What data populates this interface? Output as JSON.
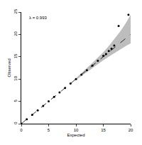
{
  "chart_data": {
    "type": "scatter",
    "x_label": "Expected",
    "y_label": "Observed",
    "annotation": "λ = 0.993",
    "xlim": [
      0,
      20
    ],
    "xticks": [
      0,
      5,
      10,
      15,
      20
    ],
    "ylim": [
      0,
      25
    ],
    "yticks": [
      0,
      5,
      10,
      15,
      20,
      25
    ],
    "grid": false,
    "color": "#000000",
    "marker": "circle",
    "x": [
      0,
      1,
      2,
      3,
      4,
      5,
      6,
      7,
      8,
      9,
      10,
      11,
      12,
      13,
      14,
      15,
      15.5,
      16,
      16.5,
      17,
      17.8,
      19.6
    ],
    "values": [
      0,
      1,
      2,
      3,
      4,
      5,
      6,
      7,
      8,
      9,
      10,
      11,
      12,
      13,
      14.1,
      15.2,
      15.6,
      16.3,
      16.8,
      17.5,
      21.9,
      24.4
    ],
    "reference_line": {
      "x": [
        0,
        20
      ],
      "values": [
        0,
        20
      ],
      "line_style": "dashed",
      "color": "#000000"
    },
    "confidence_band": {
      "x": [
        10,
        11,
        12,
        13,
        14,
        15,
        16,
        17,
        18,
        19,
        20
      ],
      "lower": [
        9.8,
        10.7,
        11.6,
        12.5,
        13.4,
        14.2,
        15.0,
        15.8,
        16.5,
        17.3,
        18.0
      ],
      "upper": [
        10.2,
        11.3,
        12.5,
        13.6,
        14.8,
        16.0,
        17.4,
        18.9,
        20.5,
        22.3,
        24.4
      ],
      "color": "#bdbdbd"
    }
  }
}
